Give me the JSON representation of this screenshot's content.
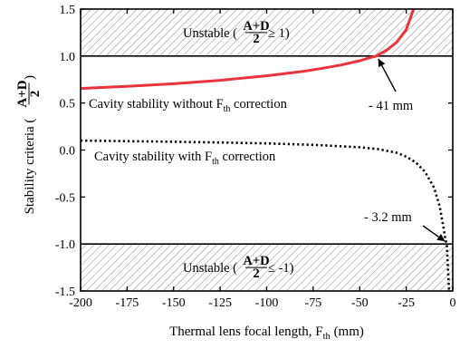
{
  "chart_data": {
    "type": "line",
    "xlabel": "Thermal lens focal length, F",
    "xlabel_sub": "th",
    "xlabel_unit": " (mm)",
    "ylabel": "Stability criteria (",
    "ylabel_frac_num": "A+D",
    "ylabel_frac_den": "2",
    "ylabel_close": ")",
    "xlim": [
      -200,
      0
    ],
    "ylim": [
      -1.5,
      1.5
    ],
    "xticks": [
      -200,
      -175,
      -150,
      -125,
      -100,
      -75,
      -50,
      -25,
      0
    ],
    "xtick_labels": [
      "-200",
      "-175",
      "-150",
      "-125",
      "-100",
      "-75",
      "-50",
      "-25",
      "0"
    ],
    "yticks": [
      -1.5,
      -1.0,
      -0.5,
      0.0,
      0.5,
      1.0,
      1.5
    ],
    "ytick_labels": [
      "-1.5",
      "-1.0",
      "-0.5",
      "0.0",
      "0.5",
      "1.0",
      "1.5"
    ],
    "grid": false,
    "stability_bounds": [
      1.0,
      -1.0
    ],
    "unstable_regions": [
      {
        "position": "top",
        "text": "Unstable (",
        "num": "A+D",
        "den": "2",
        "rel": " ≥ 1)"
      },
      {
        "position": "bottom",
        "text": "Unstable (",
        "num": "A+D",
        "den": "2",
        "rel": " ≤ -1)"
      }
    ],
    "series": [
      {
        "label_pre": "Cavity stability  without  F",
        "label_sub": "th",
        "label_post": " correction",
        "color": "#e8343a",
        "style": "solid",
        "x": [
          -200,
          -175,
          -150,
          -125,
          -100,
          -80,
          -70,
          -60,
          -50,
          -45,
          -41,
          -35,
          -30,
          -25,
          -21
        ],
        "y": [
          0.655,
          0.678,
          0.705,
          0.742,
          0.79,
          0.838,
          0.87,
          0.905,
          0.95,
          0.98,
          1.0,
          1.07,
          1.15,
          1.28,
          1.5
        ]
      },
      {
        "label_pre": "Cavity stability with F",
        "label_sub": "th",
        "label_post": " correction",
        "color": "#000000",
        "style": "dotted",
        "x": [
          -200,
          -175,
          -150,
          -125,
          -100,
          -75,
          -50,
          -40,
          -30,
          -25,
          -20,
          -15,
          -10,
          -7,
          -5,
          -4,
          -3.2,
          -2.5,
          -2
        ],
        "y": [
          0.1,
          0.095,
          0.088,
          0.08,
          0.07,
          0.055,
          0.03,
          0.01,
          -0.03,
          -0.07,
          -0.13,
          -0.23,
          -0.4,
          -0.6,
          -0.82,
          -0.95,
          -1.0,
          -1.3,
          -1.5
        ]
      }
    ],
    "annotations": [
      {
        "text": "- 41 mm",
        "x": -41,
        "y": 1.0
      },
      {
        "text": "- 3.2 mm",
        "x": -3.2,
        "y": -1.0
      }
    ]
  }
}
